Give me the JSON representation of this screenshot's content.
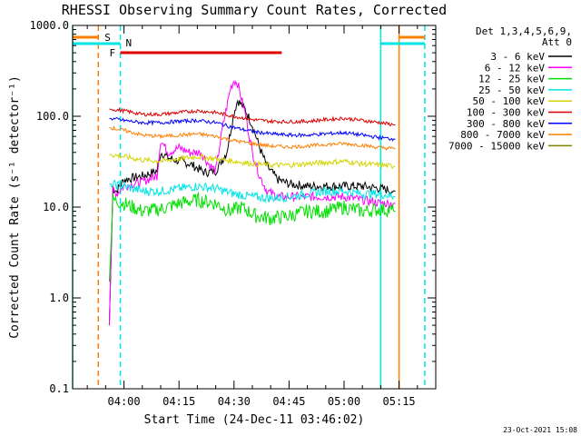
{
  "chart_data": {
    "type": "line",
    "title": "RHESSI Observing Summary Count Rates, Corrected",
    "xlabel": "Start Time (24-Dec-11 03:46:02)",
    "ylabel": "Corrected Count Rate (s⁻¹ detector⁻¹)",
    "y_scale": "log",
    "ylim": [
      0.1,
      1000
    ],
    "xlim": [
      "03:46",
      "05:25"
    ],
    "x_ticks": [
      "04:00",
      "04:15",
      "04:30",
      "04:45",
      "05:00",
      "05:15"
    ],
    "y_ticks": [
      "0.1",
      "1.0",
      "10.0",
      "100.0",
      "1000.0"
    ],
    "legend_header": [
      "Det 1,3,4,5,6,9,",
      "Att 0"
    ],
    "legend_position": "right",
    "footer_date": "23-Oct-2021 15:08",
    "markers": {
      "saa": {
        "label": "S",
        "color": "#ff7f00"
      },
      "night": {
        "label": "N",
        "color": "#00e5e5"
      },
      "flare": {
        "label": "F",
        "color": "#e00000",
        "start": "03:59",
        "end": "04:43"
      }
    },
    "event_lines": [
      {
        "time": "03:46",
        "color": "#00e5e5",
        "style": "solid"
      },
      {
        "time": "03:53",
        "color": "#ff7f00",
        "style": "dashed"
      },
      {
        "time": "03:59",
        "color": "#00e5e5",
        "style": "dashed"
      },
      {
        "time": "05:10",
        "color": "#00e5e5",
        "style": "solid"
      },
      {
        "time": "05:15",
        "color": "#ff7f00",
        "style": "solid"
      },
      {
        "time": "05:22",
        "color": "#00e5e5",
        "style": "dashed"
      }
    ],
    "data_range": [
      "03:56",
      "05:14"
    ],
    "series": [
      {
        "name": "3 - 6 keV",
        "color": "#000000",
        "noise": 0.05,
        "points": [
          [
            "03:56",
            0.5
          ],
          [
            "03:57",
            16
          ],
          [
            "03:58",
            15
          ],
          [
            "04:00",
            20
          ],
          [
            "04:05",
            22
          ],
          [
            "04:09",
            25
          ],
          [
            "04:10",
            40
          ],
          [
            "04:12",
            35
          ],
          [
            "04:15",
            32
          ],
          [
            "04:18",
            30
          ],
          [
            "04:22",
            24
          ],
          [
            "04:25",
            25
          ],
          [
            "04:28",
            40
          ],
          [
            "04:30",
            110
          ],
          [
            "04:31",
            150
          ],
          [
            "04:33",
            120
          ],
          [
            "04:35",
            80
          ],
          [
            "04:37",
            45
          ],
          [
            "04:39",
            28
          ],
          [
            "04:42",
            20
          ],
          [
            "04:45",
            18
          ],
          [
            "04:50",
            17
          ],
          [
            "04:55",
            17
          ],
          [
            "05:00",
            17
          ],
          [
            "05:05",
            17
          ],
          [
            "05:10",
            16
          ],
          [
            "05:14",
            15
          ]
        ]
      },
      {
        "name": "6 - 12 keV",
        "color": "#ff00ff",
        "noise": 0.05,
        "points": [
          [
            "03:56",
            0.5
          ],
          [
            "03:57",
            16
          ],
          [
            "03:58",
            14
          ],
          [
            "04:00",
            17
          ],
          [
            "04:05",
            19
          ],
          [
            "04:09",
            22
          ],
          [
            "04:10",
            55
          ],
          [
            "04:12",
            40
          ],
          [
            "04:15",
            45
          ],
          [
            "04:18",
            40
          ],
          [
            "04:21",
            40
          ],
          [
            "04:23",
            30
          ],
          [
            "04:25",
            25
          ],
          [
            "04:27",
            80
          ],
          [
            "04:29",
            200
          ],
          [
            "04:30",
            250
          ],
          [
            "04:31",
            230
          ],
          [
            "04:33",
            110
          ],
          [
            "04:35",
            40
          ],
          [
            "04:37",
            22
          ],
          [
            "04:39",
            15
          ],
          [
            "04:42",
            13
          ],
          [
            "04:45",
            13
          ],
          [
            "04:50",
            13
          ],
          [
            "04:55",
            13
          ],
          [
            "05:00",
            13
          ],
          [
            "05:05",
            12
          ],
          [
            "05:10",
            11
          ],
          [
            "05:14",
            11
          ]
        ]
      },
      {
        "name": "12 - 25 keV",
        "color": "#00e000",
        "noise": 0.08,
        "points": [
          [
            "03:56",
            1.5
          ],
          [
            "03:57",
            12
          ],
          [
            "04:00",
            11
          ],
          [
            "04:05",
            9
          ],
          [
            "04:10",
            9.5
          ],
          [
            "04:15",
            11
          ],
          [
            "04:20",
            12
          ],
          [
            "04:25",
            11
          ],
          [
            "04:29",
            9
          ],
          [
            "04:32",
            10
          ],
          [
            "04:36",
            8
          ],
          [
            "04:40",
            7.5
          ],
          [
            "04:45",
            8
          ],
          [
            "04:50",
            9
          ],
          [
            "04:55",
            9
          ],
          [
            "05:00",
            10
          ],
          [
            "05:05",
            9
          ],
          [
            "05:10",
            9.5
          ],
          [
            "05:14",
            9
          ]
        ]
      },
      {
        "name": "25 - 50 keV",
        "color": "#00e5e5",
        "noise": 0.05,
        "points": [
          [
            "03:56",
            18
          ],
          [
            "04:00",
            17
          ],
          [
            "04:05",
            15
          ],
          [
            "04:10",
            15
          ],
          [
            "04:15",
            16
          ],
          [
            "04:20",
            17
          ],
          [
            "04:25",
            16
          ],
          [
            "04:30",
            14
          ],
          [
            "04:35",
            13
          ],
          [
            "04:40",
            12.5
          ],
          [
            "04:45",
            13
          ],
          [
            "04:50",
            14
          ],
          [
            "04:55",
            15
          ],
          [
            "05:00",
            15
          ],
          [
            "05:05",
            14
          ],
          [
            "05:10",
            14
          ],
          [
            "05:14",
            13
          ]
        ]
      },
      {
        "name": "50 - 100 keV",
        "color": "#d4d400",
        "noise": 0.03,
        "points": [
          [
            "03:56",
            38
          ],
          [
            "04:00",
            36
          ],
          [
            "04:05",
            33
          ],
          [
            "04:10",
            32
          ],
          [
            "04:15",
            34
          ],
          [
            "04:20",
            36
          ],
          [
            "04:25",
            34
          ],
          [
            "04:30",
            32
          ],
          [
            "04:35",
            30
          ],
          [
            "04:40",
            29
          ],
          [
            "04:45",
            29
          ],
          [
            "04:50",
            30
          ],
          [
            "04:55",
            31
          ],
          [
            "05:00",
            32
          ],
          [
            "05:05",
            30
          ],
          [
            "05:10",
            29
          ],
          [
            "05:14",
            28
          ]
        ]
      },
      {
        "name": "100 - 300 keV",
        "color": "#e00000",
        "noise": 0.02,
        "points": [
          [
            "03:56",
            120
          ],
          [
            "04:00",
            115
          ],
          [
            "04:05",
            105
          ],
          [
            "04:10",
            105
          ],
          [
            "04:15",
            110
          ],
          [
            "04:20",
            115
          ],
          [
            "04:25",
            110
          ],
          [
            "04:30",
            100
          ],
          [
            "04:35",
            92
          ],
          [
            "04:40",
            88
          ],
          [
            "04:45",
            87
          ],
          [
            "04:50",
            88
          ],
          [
            "04:55",
            92
          ],
          [
            "05:00",
            95
          ],
          [
            "05:05",
            90
          ],
          [
            "05:10",
            85
          ],
          [
            "05:14",
            80
          ]
        ]
      },
      {
        "name": "300 - 800 keV",
        "color": "#0000ff",
        "noise": 0.02,
        "points": [
          [
            "03:56",
            95
          ],
          [
            "04:00",
            90
          ],
          [
            "04:05",
            85
          ],
          [
            "04:10",
            85
          ],
          [
            "04:15",
            88
          ],
          [
            "04:20",
            90
          ],
          [
            "04:25",
            85
          ],
          [
            "04:30",
            75
          ],
          [
            "04:35",
            68
          ],
          [
            "04:40",
            64
          ],
          [
            "04:45",
            62
          ],
          [
            "04:50",
            62
          ],
          [
            "04:55",
            64
          ],
          [
            "05:00",
            66
          ],
          [
            "05:05",
            62
          ],
          [
            "05:10",
            58
          ],
          [
            "05:14",
            56
          ]
        ]
      },
      {
        "name": "800 - 7000 keV",
        "color": "#ff7f00",
        "noise": 0.02,
        "points": [
          [
            "03:56",
            75
          ],
          [
            "04:00",
            70
          ],
          [
            "04:05",
            62
          ],
          [
            "04:10",
            60
          ],
          [
            "04:15",
            62
          ],
          [
            "04:20",
            64
          ],
          [
            "04:25",
            60
          ],
          [
            "04:30",
            54
          ],
          [
            "04:35",
            50
          ],
          [
            "04:40",
            47
          ],
          [
            "04:45",
            46
          ],
          [
            "04:50",
            47
          ],
          [
            "04:55",
            49
          ],
          [
            "05:00",
            50
          ],
          [
            "05:05",
            48
          ],
          [
            "05:10",
            45
          ],
          [
            "05:14",
            44
          ]
        ]
      },
      {
        "name": "7000 - 15000 keV",
        "color": "#808000",
        "noise": 0,
        "points": []
      }
    ]
  }
}
